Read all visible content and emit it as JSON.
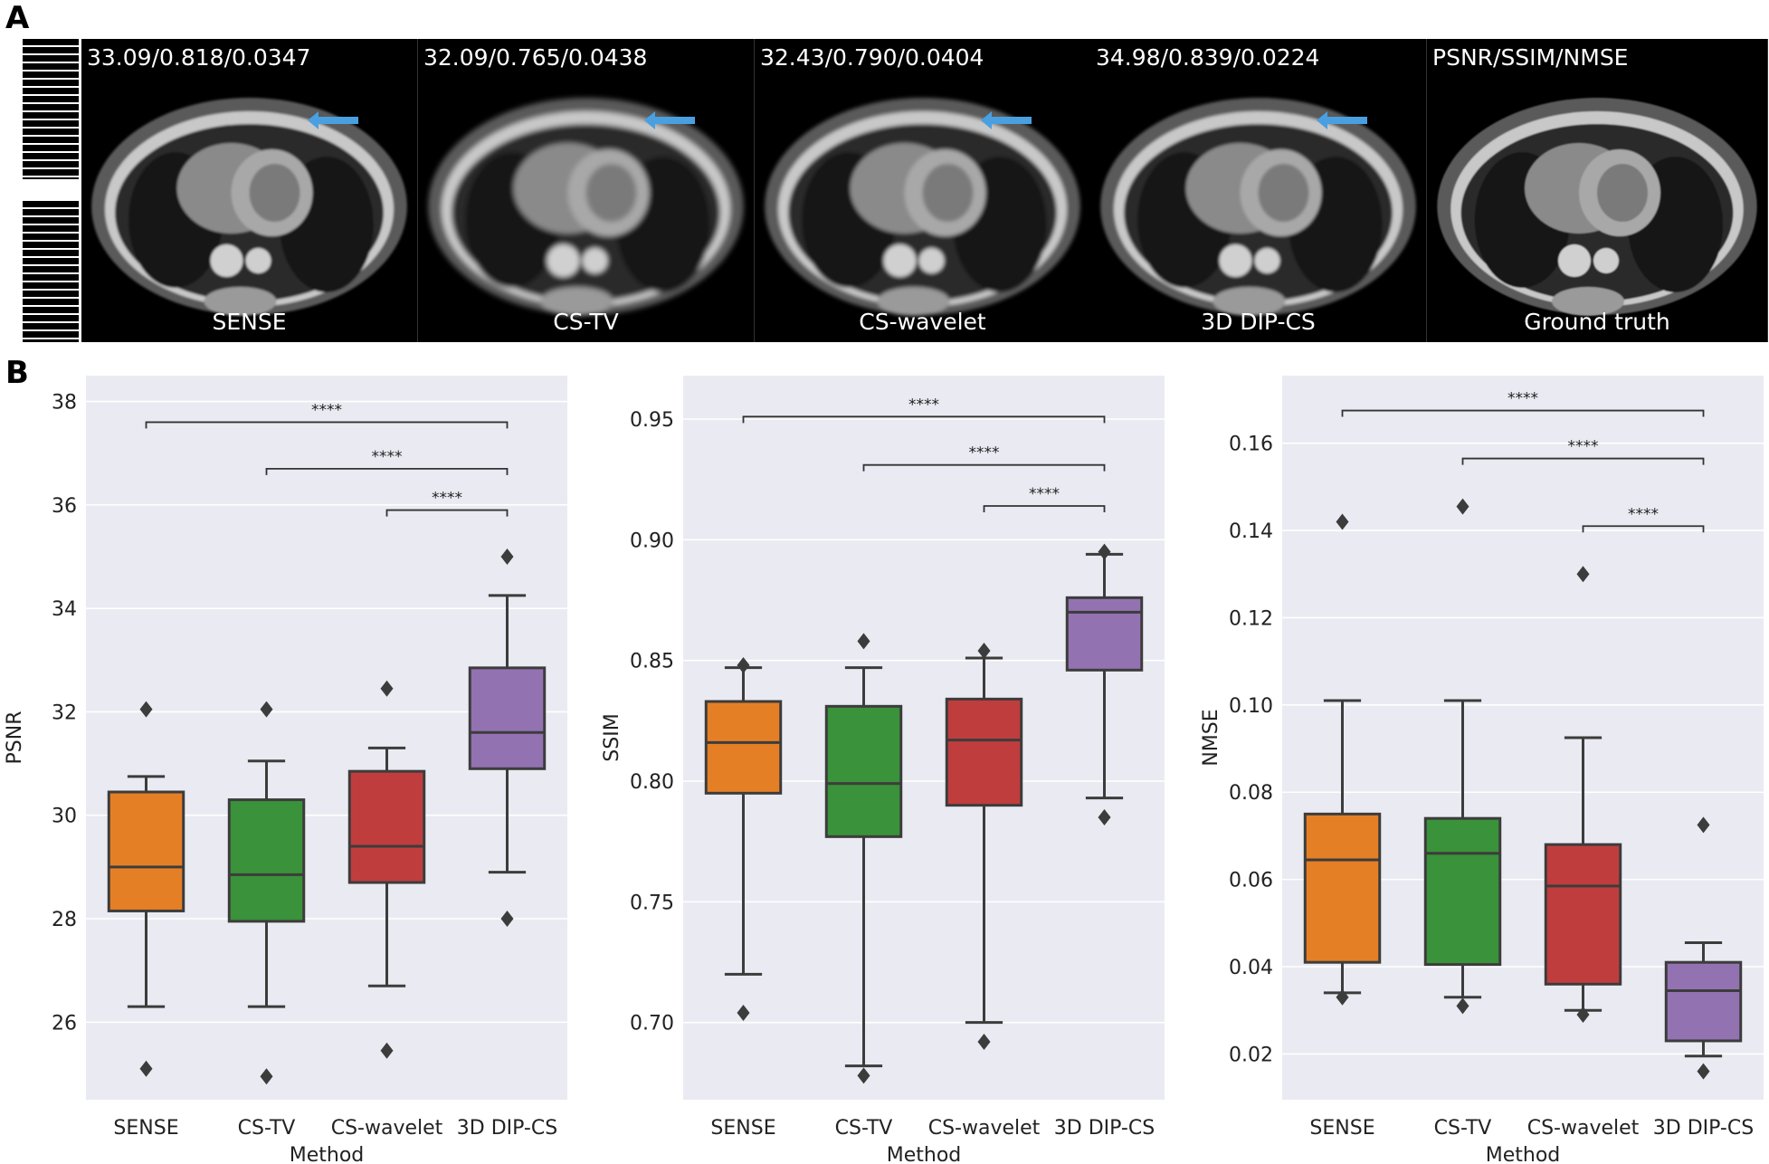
{
  "panels": {
    "a_label": "A",
    "b_label": "B"
  },
  "mri_images": [
    {
      "metrics": "33.09/0.818/0.0347",
      "label": "SENSE",
      "arrow": true
    },
    {
      "metrics": "32.09/0.765/0.0438",
      "label": "CS-TV",
      "arrow": true
    },
    {
      "metrics": "32.43/0.790/0.0404",
      "label": "CS-wavelet",
      "arrow": true
    },
    {
      "metrics": "34.98/0.839/0.0224",
      "label": "3D DIP-CS",
      "arrow": true
    },
    {
      "metrics": "PSNR/SSIM/NMSE",
      "label": "Ground truth",
      "arrow": false
    }
  ],
  "colors": {
    "plot_bg": "#eaeaf2",
    "sense": "#e57f26",
    "cstv": "#3a923a",
    "cswavelet": "#c03d3e",
    "dipcs": "#9372b2",
    "arrow": "#4a9fe0"
  },
  "chart_data": [
    {
      "type": "box",
      "title": "PSNR",
      "xlabel": "Method",
      "ylabel": "PSNR",
      "ylim": [
        24.5,
        38.5
      ],
      "yticks": [
        "26",
        "28",
        "30",
        "32",
        "34",
        "36",
        "38"
      ],
      "ytick_values": [
        26,
        28,
        30,
        32,
        34,
        36,
        38
      ],
      "categories": [
        "SENSE",
        "CS-TV",
        "CS-wavelet",
        "3D DIP-CS"
      ],
      "boxes": [
        {
          "whislo": 26.3,
          "q1": 28.15,
          "med": 29.0,
          "q3": 30.45,
          "whishi": 30.75,
          "fliers": [
            32.05,
            25.1
          ]
        },
        {
          "whislo": 26.3,
          "q1": 27.95,
          "med": 28.85,
          "q3": 30.3,
          "whishi": 31.05,
          "fliers": [
            32.05,
            24.95
          ]
        },
        {
          "whislo": 26.7,
          "q1": 28.7,
          "med": 29.4,
          "q3": 30.85,
          "whishi": 31.3,
          "fliers": [
            32.45,
            25.45
          ]
        },
        {
          "whislo": 28.9,
          "q1": 30.9,
          "med": 31.6,
          "q3": 32.85,
          "whishi": 34.25,
          "fliers": [
            35.0,
            28.0
          ]
        }
      ],
      "significance": [
        {
          "from": 0,
          "to": 3,
          "y": 37.6,
          "label": "****"
        },
        {
          "from": 1,
          "to": 3,
          "y": 36.7,
          "label": "****"
        },
        {
          "from": 2,
          "to": 3,
          "y": 35.9,
          "label": "****"
        }
      ]
    },
    {
      "type": "box",
      "title": "SSIM",
      "xlabel": "Method",
      "ylabel": "SSIM",
      "ylim": [
        0.668,
        0.968
      ],
      "yticks": [
        "0.70",
        "0.75",
        "0.80",
        "0.85",
        "0.90",
        "0.95"
      ],
      "ytick_values": [
        0.7,
        0.75,
        0.8,
        0.85,
        0.9,
        0.95
      ],
      "categories": [
        "SENSE",
        "CS-TV",
        "CS-wavelet",
        "3D DIP-CS"
      ],
      "boxes": [
        {
          "whislo": 0.72,
          "q1": 0.795,
          "med": 0.816,
          "q3": 0.833,
          "whishi": 0.847,
          "fliers": [
            0.848,
            0.704
          ]
        },
        {
          "whislo": 0.682,
          "q1": 0.777,
          "med": 0.799,
          "q3": 0.831,
          "whishi": 0.847,
          "fliers": [
            0.858,
            0.678
          ]
        },
        {
          "whislo": 0.7,
          "q1": 0.79,
          "med": 0.817,
          "q3": 0.834,
          "whishi": 0.851,
          "fliers": [
            0.854,
            0.692
          ]
        },
        {
          "whislo": 0.793,
          "q1": 0.846,
          "med": 0.87,
          "q3": 0.876,
          "whishi": 0.894,
          "fliers": [
            0.895,
            0.785
          ]
        }
      ],
      "significance": [
        {
          "from": 0,
          "to": 3,
          "y": 0.951,
          "label": "****"
        },
        {
          "from": 1,
          "to": 3,
          "y": 0.931,
          "label": "****"
        },
        {
          "from": 2,
          "to": 3,
          "y": 0.914,
          "label": "****"
        }
      ]
    },
    {
      "type": "box",
      "title": "NMSE",
      "xlabel": "Method",
      "ylabel": "NMSE",
      "ylim": [
        0.0095,
        0.1755
      ],
      "yticks": [
        "0.02",
        "0.04",
        "0.06",
        "0.08",
        "0.10",
        "0.12",
        "0.14",
        "0.16"
      ],
      "ytick_values": [
        0.02,
        0.04,
        0.06,
        0.08,
        0.1,
        0.12,
        0.14,
        0.16
      ],
      "categories": [
        "SENSE",
        "CS-TV",
        "CS-wavelet",
        "3D DIP-CS"
      ],
      "boxes": [
        {
          "whislo": 0.034,
          "q1": 0.041,
          "med": 0.0645,
          "q3": 0.075,
          "whishi": 0.101,
          "fliers": [
            0.142,
            0.033
          ]
        },
        {
          "whislo": 0.033,
          "q1": 0.0405,
          "med": 0.066,
          "q3": 0.074,
          "whishi": 0.101,
          "fliers": [
            0.1455,
            0.031
          ]
        },
        {
          "whislo": 0.03,
          "q1": 0.036,
          "med": 0.0585,
          "q3": 0.068,
          "whishi": 0.0925,
          "fliers": [
            0.13,
            0.029
          ]
        },
        {
          "whislo": 0.0195,
          "q1": 0.023,
          "med": 0.0345,
          "q3": 0.041,
          "whishi": 0.0455,
          "fliers": [
            0.0725,
            0.016
          ]
        }
      ],
      "significance": [
        {
          "from": 0,
          "to": 3,
          "y": 0.1675,
          "label": "****"
        },
        {
          "from": 1,
          "to": 3,
          "y": 0.1565,
          "label": "****"
        },
        {
          "from": 2,
          "to": 3,
          "y": 0.141,
          "label": "****"
        }
      ]
    }
  ]
}
